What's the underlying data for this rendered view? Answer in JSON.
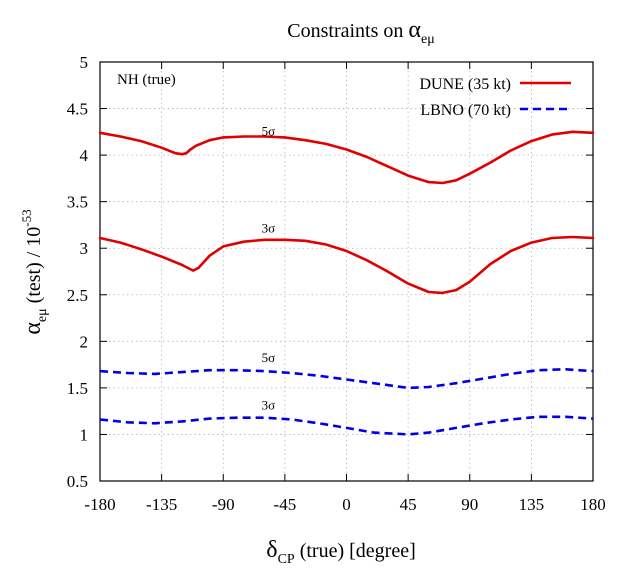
{
  "chart_data": {
    "type": "line",
    "title_prefix": "Constraints on ",
    "title_symbol": "α",
    "title_subscript": "eμ",
    "xlabel_symbol": "δ",
    "xlabel_subscript": "CP",
    "xlabel_suffix": " (true) [degree]",
    "ylabel_symbol": "α",
    "ylabel_subscript": "eμ",
    "ylabel_suffix": " (test) / 10",
    "ylabel_superscript": "-53",
    "annotation": "NH (true)",
    "xlim": [
      -180,
      180
    ],
    "ylim": [
      0.5,
      5
    ],
    "xticks": [
      -180,
      -135,
      -90,
      -45,
      0,
      45,
      90,
      135,
      180
    ],
    "yticks": [
      0.5,
      1,
      1.5,
      2,
      2.5,
      3,
      3.5,
      4,
      4.5,
      5
    ],
    "ytick_labels": [
      "0.5",
      "1",
      "1.5",
      "2",
      "2.5",
      "3",
      "3.5",
      "4",
      "4.5",
      "5"
    ],
    "grid": true,
    "legend_position": "top-right",
    "legend": [
      {
        "name": "DUNE (35 kt)",
        "color": "#e00000",
        "dash": "solid"
      },
      {
        "name": "LBNO (70 kt)",
        "color": "#0000e6",
        "dash": "dashed"
      }
    ],
    "series": [
      {
        "experiment": "DUNE (35 kt)",
        "label": "5σ",
        "label_at": [
          -57,
          4.21
        ],
        "color": "#e00000",
        "dash": "solid",
        "x": [
          -180,
          -165,
          -150,
          -135,
          -125,
          -120,
          -117,
          -114,
          -110,
          -100,
          -90,
          -75,
          -60,
          -45,
          -30,
          -15,
          0,
          15,
          30,
          45,
          60,
          70,
          80,
          90,
          105,
          120,
          135,
          150,
          165,
          180
        ],
        "y": [
          4.24,
          4.2,
          4.15,
          4.08,
          4.02,
          4.01,
          4.02,
          4.06,
          4.1,
          4.16,
          4.19,
          4.2,
          4.2,
          4.19,
          4.16,
          4.12,
          4.06,
          3.98,
          3.88,
          3.78,
          3.71,
          3.7,
          3.73,
          3.8,
          3.92,
          4.05,
          4.15,
          4.22,
          4.25,
          4.24
        ]
      },
      {
        "experiment": "DUNE (35 kt)",
        "label": "3σ",
        "label_at": [
          -57,
          3.17
        ],
        "color": "#e00000",
        "dash": "solid",
        "x": [
          -180,
          -165,
          -150,
          -135,
          -120,
          -112,
          -108,
          -100,
          -90,
          -75,
          -60,
          -45,
          -30,
          -15,
          0,
          15,
          30,
          45,
          60,
          70,
          80,
          90,
          105,
          120,
          135,
          150,
          165,
          180
        ],
        "y": [
          3.11,
          3.06,
          2.99,
          2.91,
          2.82,
          2.76,
          2.79,
          2.92,
          3.02,
          3.07,
          3.09,
          3.09,
          3.08,
          3.04,
          2.97,
          2.87,
          2.75,
          2.62,
          2.53,
          2.52,
          2.55,
          2.64,
          2.83,
          2.97,
          3.06,
          3.11,
          3.12,
          3.11
        ]
      },
      {
        "experiment": "LBNO (70 kt)",
        "label": "5σ",
        "label_at": [
          -57,
          1.78
        ],
        "color": "#0000e6",
        "dash": "dashed",
        "x": [
          -180,
          -160,
          -140,
          -120,
          -100,
          -80,
          -60,
          -40,
          -20,
          0,
          20,
          45,
          60,
          80,
          100,
          120,
          140,
          160,
          180
        ],
        "y": [
          1.68,
          1.66,
          1.65,
          1.67,
          1.69,
          1.69,
          1.68,
          1.66,
          1.63,
          1.59,
          1.55,
          1.5,
          1.51,
          1.55,
          1.6,
          1.65,
          1.69,
          1.7,
          1.68
        ]
      },
      {
        "experiment": "LBNO (70 kt)",
        "label": "3σ",
        "label_at": [
          -57,
          1.27
        ],
        "color": "#0000e6",
        "dash": "dashed",
        "x": [
          -180,
          -160,
          -140,
          -120,
          -100,
          -80,
          -60,
          -40,
          -20,
          0,
          20,
          45,
          60,
          80,
          100,
          120,
          140,
          160,
          180
        ],
        "y": [
          1.16,
          1.13,
          1.12,
          1.14,
          1.17,
          1.18,
          1.18,
          1.16,
          1.12,
          1.07,
          1.02,
          1.0,
          1.02,
          1.07,
          1.12,
          1.16,
          1.19,
          1.19,
          1.17
        ]
      }
    ]
  }
}
